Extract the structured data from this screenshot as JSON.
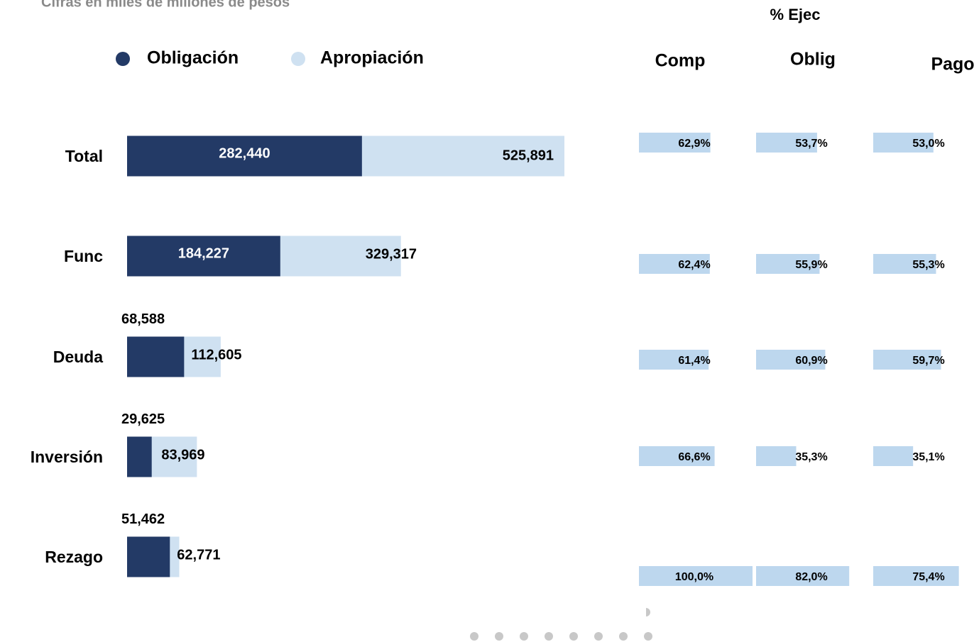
{
  "chart_data": {
    "type": "bar",
    "orientation": "horizontal",
    "title": "Cifras en miles de millones de pesos",
    "categories": [
      "Total",
      "Func",
      "Deuda",
      "Inversión",
      "Rezago"
    ],
    "series": [
      {
        "name": "Obligación",
        "color": "#233a66",
        "values": [
          282440,
          184227,
          68588,
          29625,
          51462
        ],
        "value_labels": [
          "282,440",
          "184,227",
          "68,588",
          "29,625",
          "51,462"
        ]
      },
      {
        "name": "Apropiación",
        "color": "#cfe1f1",
        "values": [
          525891,
          329317,
          112605,
          83969,
          62771
        ],
        "value_labels": [
          "525,891",
          "329,317",
          "112,605",
          "83,969",
          "62,771"
        ]
      }
    ],
    "table": {
      "title": "% Ejec",
      "color": "#bdd7ee",
      "columns": [
        {
          "name": "Comp",
          "values": [
            62.9,
            62.4,
            61.4,
            66.6,
            100.0
          ],
          "value_labels": [
            "62,9%",
            "62,4%",
            "61,4%",
            "66,6%",
            "100,0%"
          ]
        },
        {
          "name": "Oblig",
          "values": [
            53.7,
            55.9,
            60.9,
            35.3,
            82.0
          ],
          "value_labels": [
            "53,7%",
            "55,9%",
            "60,9%",
            "35,3%",
            "82,0%"
          ]
        },
        {
          "name": "Pago",
          "values": [
            53.0,
            55.3,
            59.7,
            35.1,
            75.4
          ],
          "value_labels": [
            "53,0%",
            "55,3%",
            "59,7%",
            "35,1%",
            "75,4%"
          ]
        }
      ]
    }
  }
}
